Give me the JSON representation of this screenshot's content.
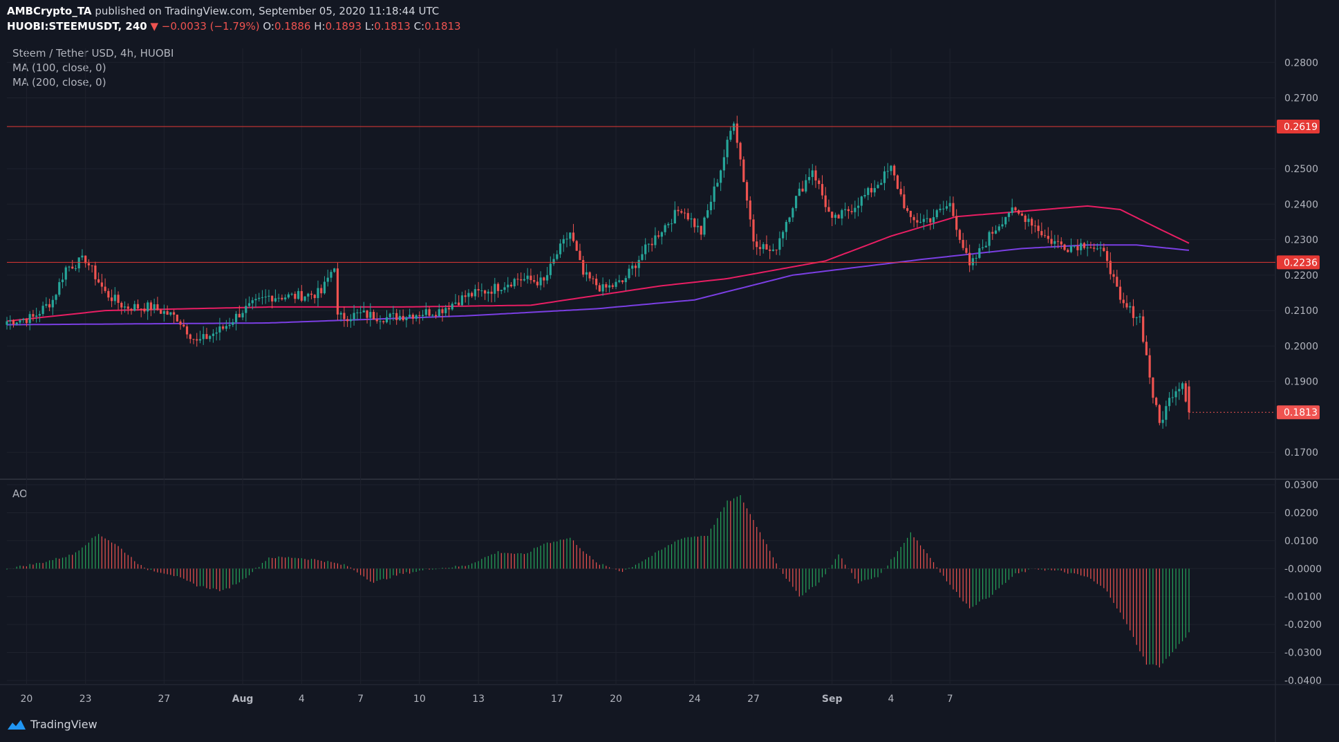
{
  "header": {
    "publisher": "AMBCrypto_TA",
    "published_text": "published on TradingView.com, September 05, 2020 11:18:44 UTC",
    "symbol": "HUOBI:STEEMUSDT, 240",
    "change": "▼ −0.0033 (−1.79%)",
    "o_label": "O:",
    "o_value": "0.1886",
    "h_label": "H:",
    "h_value": "0.1893",
    "l_label": "L:",
    "l_value": "0.1813",
    "c_label": "C:",
    "c_value": "0.1813"
  },
  "legend": {
    "title": "Steem / Tether USD, 4h, HUOBI",
    "ma100": "MA (100, close, 0)",
    "ma200": "MA (200, close, 0)",
    "ao": "AO"
  },
  "brand": {
    "name": "TradingView"
  },
  "colors": {
    "background": "#131722",
    "up": "#26a69a",
    "down": "#ef5350",
    "ma100": "#e91e63",
    "ma200": "#7b3fe4",
    "hline": "#e53935",
    "ao_up": "#26a65b",
    "ao_down": "#ef5350"
  },
  "chart_data": [
    {
      "type": "candlestick",
      "title": "Steem / Tether USD, 4h, HUOBI",
      "y_axis_labels": [
        "0.2800",
        "0.2700",
        "0.2619",
        "0.2500",
        "0.2400",
        "0.2300",
        "0.2236",
        "0.2200",
        "0.2100",
        "0.2000",
        "0.1900",
        "0.1813",
        "0.1700"
      ],
      "ylim": [
        0.163,
        0.282
      ],
      "x_tick_labels": [
        "20",
        "23",
        "27",
        "Aug",
        "4",
        "7",
        "10",
        "13",
        "17",
        "20",
        "24",
        "27",
        "Sep",
        "4",
        "7"
      ],
      "horizontal_levels": [
        {
          "value": 0.2619,
          "label": "0.2619"
        },
        {
          "value": 0.2236,
          "label": "0.2236"
        }
      ],
      "last_price": {
        "value": 0.1813,
        "label": "0.1813"
      },
      "anchor_closes": [
        [
          0,
          0.207
        ],
        [
          8,
          0.208
        ],
        [
          14,
          0.213
        ],
        [
          18,
          0.222
        ],
        [
          24,
          0.2245
        ],
        [
          30,
          0.215
        ],
        [
          36,
          0.211
        ],
        [
          44,
          0.211
        ],
        [
          52,
          0.208
        ],
        [
          58,
          0.201
        ],
        [
          66,
          0.205
        ],
        [
          72,
          0.21
        ],
        [
          80,
          0.214
        ],
        [
          88,
          0.214
        ],
        [
          96,
          0.215
        ],
        [
          100,
          0.223
        ],
        [
          101,
          0.208
        ],
        [
          108,
          0.209
        ],
        [
          116,
          0.208
        ],
        [
          124,
          0.209
        ],
        [
          132,
          0.21
        ],
        [
          140,
          0.214
        ],
        [
          148,
          0.216
        ],
        [
          156,
          0.219
        ],
        [
          164,
          0.218
        ],
        [
          168,
          0.226
        ],
        [
          172,
          0.232
        ],
        [
          176,
          0.22
        ],
        [
          182,
          0.216
        ],
        [
          188,
          0.218
        ],
        [
          194,
          0.226
        ],
        [
          200,
          0.233
        ],
        [
          206,
          0.239
        ],
        [
          212,
          0.232
        ],
        [
          218,
          0.25
        ],
        [
          222,
          0.264
        ],
        [
          228,
          0.23
        ],
        [
          234,
          0.226
        ],
        [
          240,
          0.24
        ],
        [
          246,
          0.25
        ],
        [
          252,
          0.235
        ],
        [
          258,
          0.239
        ],
        [
          264,
          0.244
        ],
        [
          270,
          0.25
        ],
        [
          276,
          0.235
        ],
        [
          282,
          0.236
        ],
        [
          288,
          0.24
        ],
        [
          294,
          0.222
        ],
        [
          300,
          0.231
        ],
        [
          306,
          0.238
        ],
        [
          312,
          0.236
        ],
        [
          318,
          0.23
        ],
        [
          324,
          0.228
        ],
        [
          330,
          0.229
        ],
        [
          336,
          0.225
        ],
        [
          340,
          0.212
        ],
        [
          346,
          0.208
        ],
        [
          350,
          0.186
        ],
        [
          352,
          0.178
        ],
        [
          356,
          0.187
        ],
        [
          359,
          0.19
        ],
        [
          361,
          0.1813
        ]
      ],
      "series": [
        {
          "name": "MA (100, close, 0)",
          "anchors": [
            [
              0,
              0.207
            ],
            [
              30,
              0.21
            ],
            [
              80,
              0.211
            ],
            [
              120,
              0.211
            ],
            [
              160,
              0.2115
            ],
            [
              200,
              0.217
            ],
            [
              220,
              0.219
            ],
            [
              250,
              0.224
            ],
            [
              270,
              0.231
            ],
            [
              290,
              0.2365
            ],
            [
              310,
              0.238
            ],
            [
              330,
              0.2395
            ],
            [
              340,
              0.2385
            ],
            [
              352,
              0.233
            ],
            [
              361,
              0.229
            ]
          ]
        },
        {
          "name": "MA (200, close, 0)",
          "anchors": [
            [
              0,
              0.206
            ],
            [
              80,
              0.2065
            ],
            [
              140,
              0.2085
            ],
            [
              180,
              0.2105
            ],
            [
              210,
              0.213
            ],
            [
              240,
              0.22
            ],
            [
              280,
              0.2245
            ],
            [
              310,
              0.2275
            ],
            [
              330,
              0.2285
            ],
            [
              345,
              0.2285
            ],
            [
              361,
              0.227
            ]
          ]
        }
      ]
    },
    {
      "type": "bar",
      "title": "AO",
      "y_axis_labels": [
        "0.0300",
        "0.0200",
        "0.0100",
        "-0.0000",
        "-0.0100",
        "-0.0200",
        "-0.0300",
        "-0.0400"
      ],
      "ylim": [
        -0.0415,
        0.0315
      ],
      "anchors": [
        [
          0,
          0.0
        ],
        [
          10,
          0.002
        ],
        [
          20,
          0.005
        ],
        [
          28,
          0.0125
        ],
        [
          34,
          0.008
        ],
        [
          42,
          0.0
        ],
        [
          50,
          -0.002
        ],
        [
          58,
          -0.006
        ],
        [
          66,
          -0.008
        ],
        [
          72,
          -0.004
        ],
        [
          80,
          0.004
        ],
        [
          88,
          0.004
        ],
        [
          96,
          0.003
        ],
        [
          104,
          0.001
        ],
        [
          112,
          -0.005
        ],
        [
          120,
          -0.002
        ],
        [
          130,
          0.0
        ],
        [
          140,
          0.001
        ],
        [
          150,
          0.006
        ],
        [
          158,
          0.005
        ],
        [
          164,
          0.009
        ],
        [
          172,
          0.011
        ],
        [
          180,
          0.002
        ],
        [
          188,
          -0.001
        ],
        [
          196,
          0.004
        ],
        [
          206,
          0.011
        ],
        [
          214,
          0.012
        ],
        [
          220,
          0.024
        ],
        [
          224,
          0.026
        ],
        [
          230,
          0.013
        ],
        [
          236,
          0.0
        ],
        [
          242,
          -0.01
        ],
        [
          248,
          -0.005
        ],
        [
          254,
          0.005
        ],
        [
          260,
          -0.005
        ],
        [
          266,
          -0.003
        ],
        [
          272,
          0.006
        ],
        [
          276,
          0.013
        ],
        [
          282,
          0.004
        ],
        [
          288,
          -0.006
        ],
        [
          294,
          -0.014
        ],
        [
          300,
          -0.01
        ],
        [
          308,
          -0.002
        ],
        [
          314,
          0.0
        ],
        [
          322,
          -0.001
        ],
        [
          330,
          -0.003
        ],
        [
          336,
          -0.008
        ],
        [
          342,
          -0.02
        ],
        [
          348,
          -0.034
        ],
        [
          352,
          -0.035
        ],
        [
          356,
          -0.03
        ],
        [
          361,
          -0.023
        ]
      ]
    }
  ]
}
